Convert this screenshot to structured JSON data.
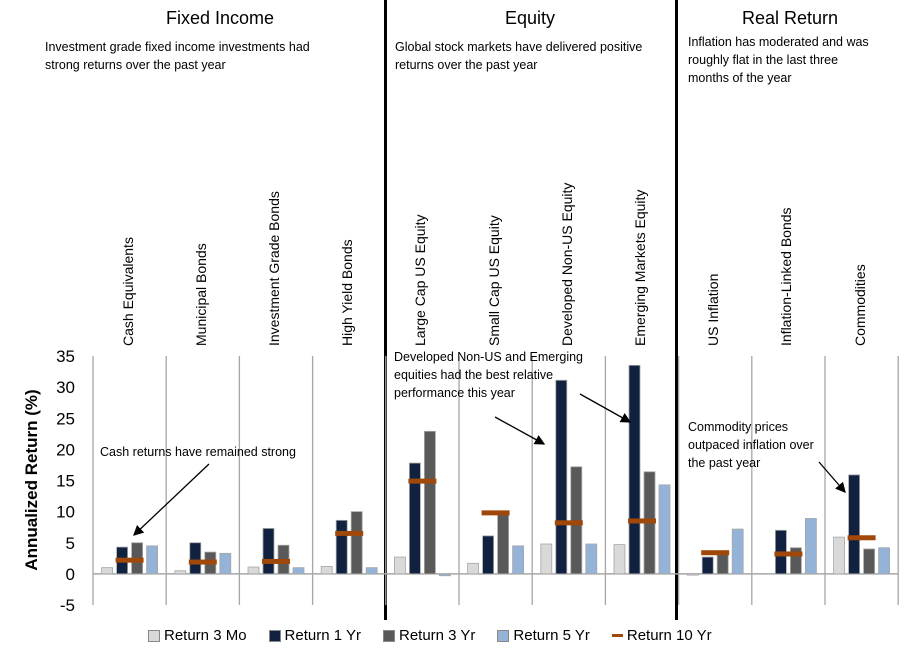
{
  "sections": [
    {
      "title": "Fixed Income",
      "description": [
        "Investment grade fixed income investments had",
        "strong returns over the past year"
      ]
    },
    {
      "title": "Equity",
      "description": [
        "Global stock markets have delivered positive",
        "returns over the past year"
      ]
    },
    {
      "title": "Real Return",
      "description": [
        "Inflation has moderated and was",
        "roughly flat in the last three",
        "months of the year"
      ]
    }
  ],
  "annotations": [
    {
      "text": [
        "Cash returns have remained strong"
      ]
    },
    {
      "text": [
        "Developed Non-US and Emerging",
        "equities had the best relative",
        "performance this year"
      ]
    },
    {
      "text": [
        "Commodity prices",
        "outpaced inflation over",
        "the past year"
      ]
    }
  ],
  "colors": {
    "return_3mo": "#d9d9d9",
    "return_1yr": "#10223f",
    "return_3yr": "#595959",
    "return_5yr": "#95b3d7",
    "return_10yr": "#a0480a",
    "grid": "#a6a6a6",
    "divider": "#000000"
  },
  "chart_data": {
    "type": "bar",
    "title": "",
    "xlabel": "",
    "ylabel": "Annualized Return (%)",
    "ylim": [
      -5,
      35
    ],
    "yticks": [
      35,
      30,
      25,
      20,
      15,
      10,
      5,
      0,
      -5
    ],
    "legend_position": "bottom",
    "categories": [
      "Cash Equivalents",
      "Municipal Bonds",
      "Investment Grade Bonds",
      "High Yield Bonds",
      "Large Cap US Equity",
      "Small  Cap US Equity",
      "Developed Non-US Equity",
      "Emerging Markets Equity",
      "US Inflation",
      "Inflation-Linked Bonds",
      "Commodities"
    ],
    "groups": [
      {
        "name": "Fixed Income",
        "categories": [
          0,
          1,
          2,
          3
        ]
      },
      {
        "name": "Equity",
        "categories": [
          4,
          5,
          6,
          7
        ]
      },
      {
        "name": "Real Return",
        "categories": [
          8,
          9,
          10
        ]
      }
    ],
    "series": [
      {
        "name": "Return 3 Mo",
        "kind": "bar",
        "values": [
          1.0,
          0.5,
          1.1,
          1.2,
          2.7,
          1.7,
          4.8,
          4.7,
          -0.2,
          0.0,
          5.9
        ]
      },
      {
        "name": "Return 1 Yr",
        "kind": "bar",
        "values": [
          4.3,
          5.0,
          7.3,
          8.6,
          17.8,
          6.1,
          31.1,
          33.5,
          2.7,
          7.0,
          15.9
        ]
      },
      {
        "name": "Return 3 Yr",
        "kind": "bar",
        "values": [
          5.0,
          3.5,
          4.6,
          10.0,
          22.9,
          10.1,
          17.2,
          16.4,
          3.2,
          4.2,
          4.0
        ]
      },
      {
        "name": "Return 5 Yr",
        "kind": "bar",
        "values": [
          4.5,
          3.3,
          1.0,
          1.0,
          -0.3,
          4.5,
          4.8,
          14.3,
          7.2,
          8.9,
          4.2
        ]
      },
      {
        "name": "Return 10 Yr",
        "kind": "marker",
        "values": [
          2.2,
          1.9,
          2.0,
          6.5,
          14.9,
          9.8,
          8.2,
          8.5,
          3.4,
          3.2,
          5.8
        ]
      }
    ]
  }
}
